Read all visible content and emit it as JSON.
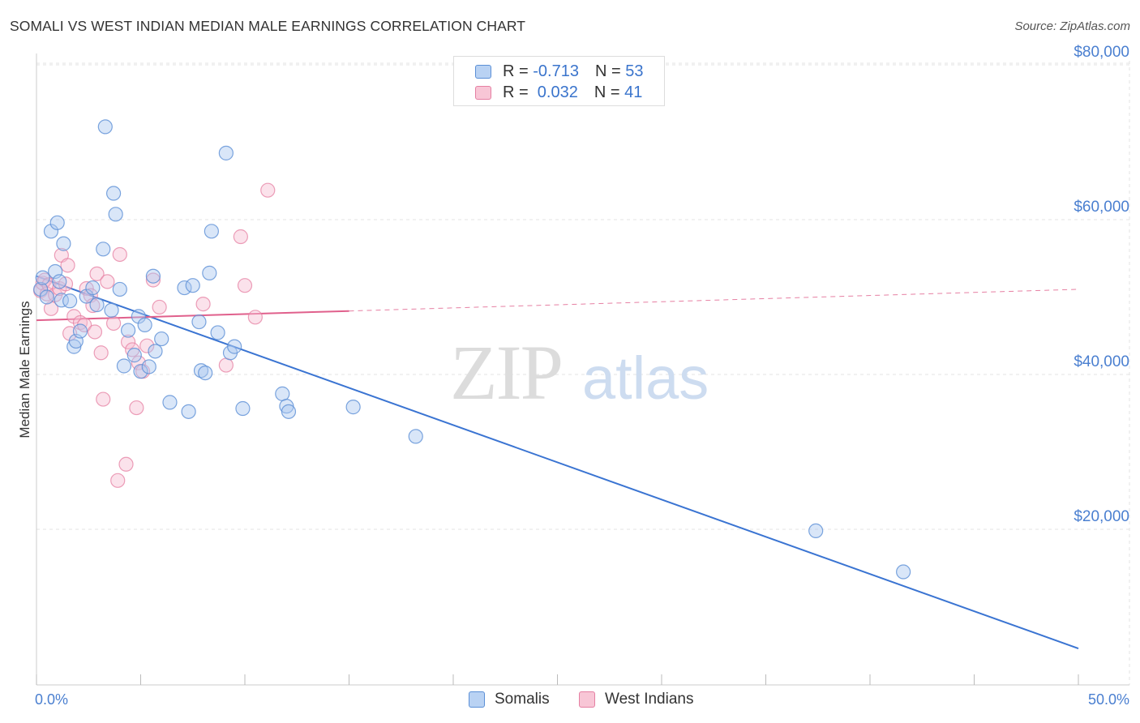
{
  "header": {
    "title": "SOMALI VS WEST INDIAN MEDIAN MALE EARNINGS CORRELATION CHART",
    "source": "Source: ZipAtlas.com"
  },
  "watermark": {
    "zip": "ZIP",
    "atlas": "atlas"
  },
  "legend": {
    "rows": [
      {
        "r_label": "R = ",
        "r_value": "-0.713",
        "n_label": "N = ",
        "n_value": "53",
        "color": "#5b8fd6",
        "fill": "#b9d2f3"
      },
      {
        "r_label": "R = ",
        "r_value": " 0.032",
        "n_label": "N = ",
        "n_value": "41",
        "color": "#e57fa2",
        "fill": "#f8c6d6"
      }
    ]
  },
  "bottom_legend": {
    "items": [
      "Somalis",
      "West Indians"
    ]
  },
  "colors": {
    "somali_stroke": "#5b8fd6",
    "somali_fill": "#aac8ef",
    "somali_line": "#3a74d2",
    "westindian_stroke": "#e57fa2",
    "westindian_fill": "#f7bfd2",
    "westindian_line": "#e0608c",
    "grid": "#e3e3e3",
    "axis_text": "#4a7fd0"
  },
  "chart_data": {
    "type": "scatter",
    "title": "SOMALI VS WEST INDIAN MEDIAN MALE EARNINGS CORRELATION CHART",
    "xlabel": "",
    "ylabel": "Median Male Earnings",
    "xlim": [
      0,
      50
    ],
    "ylim": [
      0,
      84000
    ],
    "x_tick_labels": [
      {
        "value": 0,
        "label": "0.0%"
      },
      {
        "value": 50,
        "label": "50.0%"
      }
    ],
    "y_ticks": [
      {
        "value": 20000,
        "label": "$20,000"
      },
      {
        "value": 40000,
        "label": "$40,000"
      },
      {
        "value": 60000,
        "label": "$60,000"
      },
      {
        "value": 80000,
        "label": "$80,000"
      }
    ],
    "grid": true,
    "legend_position": "top-center",
    "series": [
      {
        "name": "Somalis",
        "R": -0.713,
        "N": 53,
        "trend": {
          "x": [
            0,
            50
          ],
          "y": [
            52700,
            4600
          ],
          "style": "solid"
        },
        "points": [
          [
            0.2,
            51000
          ],
          [
            0.3,
            52500
          ],
          [
            0.5,
            50000
          ],
          [
            0.7,
            58500
          ],
          [
            0.9,
            53300
          ],
          [
            1.0,
            59600
          ],
          [
            1.1,
            52000
          ],
          [
            1.2,
            49600
          ],
          [
            1.3,
            56900
          ],
          [
            1.6,
            49500
          ],
          [
            1.8,
            43600
          ],
          [
            1.9,
            44300
          ],
          [
            2.1,
            45600
          ],
          [
            2.4,
            50100
          ],
          [
            2.9,
            49000
          ],
          [
            3.2,
            56200
          ],
          [
            3.3,
            72000
          ],
          [
            3.6,
            48300
          ],
          [
            3.7,
            63400
          ],
          [
            3.8,
            60700
          ],
          [
            4.0,
            51000
          ],
          [
            4.2,
            41100
          ],
          [
            4.4,
            45700
          ],
          [
            4.7,
            42500
          ],
          [
            4.9,
            47500
          ],
          [
            5.0,
            40400
          ],
          [
            5.2,
            46400
          ],
          [
            5.4,
            41000
          ],
          [
            5.6,
            52700
          ],
          [
            5.7,
            43000
          ],
          [
            6.0,
            44600
          ],
          [
            6.4,
            36400
          ],
          [
            7.1,
            51200
          ],
          [
            7.3,
            35200
          ],
          [
            7.5,
            51500
          ],
          [
            7.8,
            46800
          ],
          [
            7.9,
            40500
          ],
          [
            8.1,
            40200
          ],
          [
            8.3,
            53100
          ],
          [
            8.4,
            58500
          ],
          [
            8.7,
            45400
          ],
          [
            9.1,
            68600
          ],
          [
            9.3,
            42800
          ],
          [
            9.5,
            43600
          ],
          [
            9.9,
            35600
          ],
          [
            11.8,
            37500
          ],
          [
            12.0,
            35900
          ],
          [
            12.1,
            35200
          ],
          [
            15.2,
            35800
          ],
          [
            18.2,
            32000
          ],
          [
            37.4,
            19800
          ],
          [
            41.6,
            14500
          ],
          [
            2.7,
            51200
          ]
        ]
      },
      {
        "name": "West Indians",
        "R": 0.032,
        "N": 41,
        "trend": {
          "x": [
            0,
            50
          ],
          "y": [
            47000,
            51000
          ],
          "style": "solid-then-dashed",
          "solid_until_x": 15
        },
        "points": [
          [
            0.2,
            50800
          ],
          [
            0.3,
            51800
          ],
          [
            0.4,
            52200
          ],
          [
            0.5,
            50400
          ],
          [
            0.6,
            51600
          ],
          [
            0.7,
            48500
          ],
          [
            0.9,
            50300
          ],
          [
            1.1,
            51100
          ],
          [
            1.2,
            55400
          ],
          [
            1.4,
            51700
          ],
          [
            1.5,
            54100
          ],
          [
            1.6,
            45300
          ],
          [
            1.8,
            47500
          ],
          [
            2.1,
            46700
          ],
          [
            2.3,
            46400
          ],
          [
            2.4,
            51100
          ],
          [
            2.6,
            50200
          ],
          [
            2.7,
            48900
          ],
          [
            2.8,
            45500
          ],
          [
            2.9,
            53000
          ],
          [
            3.1,
            42800
          ],
          [
            3.2,
            36800
          ],
          [
            3.4,
            52000
          ],
          [
            3.7,
            46600
          ],
          [
            3.9,
            26300
          ],
          [
            4.0,
            55500
          ],
          [
            4.3,
            28400
          ],
          [
            4.4,
            44200
          ],
          [
            4.6,
            43200
          ],
          [
            4.8,
            35700
          ],
          [
            4.9,
            41500
          ],
          [
            5.1,
            40400
          ],
          [
            5.3,
            43700
          ],
          [
            5.6,
            52200
          ],
          [
            5.9,
            48700
          ],
          [
            8.0,
            49100
          ],
          [
            9.1,
            41200
          ],
          [
            9.8,
            57800
          ],
          [
            10.0,
            51500
          ],
          [
            10.5,
            47400
          ],
          [
            11.1,
            63800
          ]
        ]
      }
    ]
  }
}
